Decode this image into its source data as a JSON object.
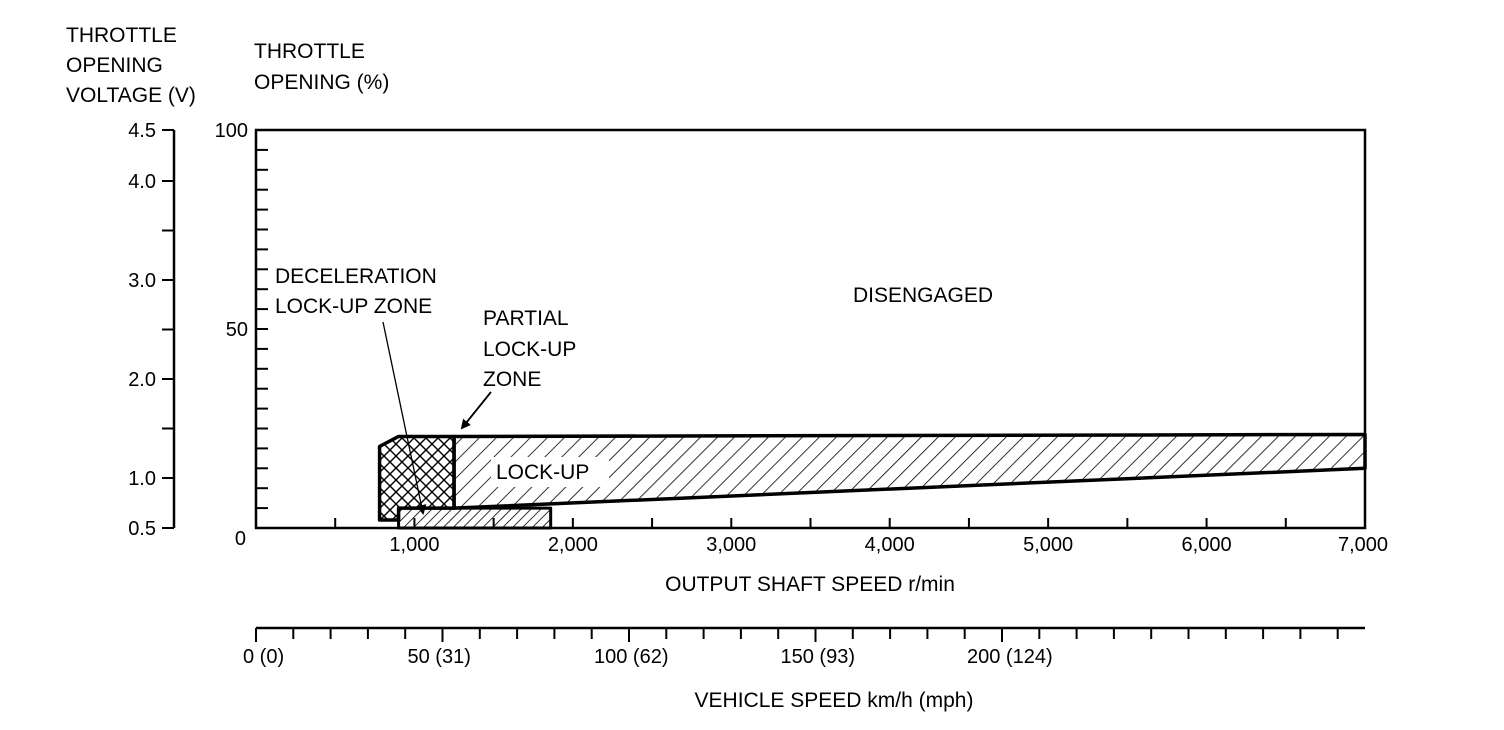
{
  "chart_data": {
    "type": "area",
    "left_axis_title": [
      "THROTTLE",
      "OPENING",
      "VOLTAGE (V)"
    ],
    "inner_axis_title": [
      "THROTTLE",
      "OPENING (%)"
    ],
    "voltage_ticks": [
      "4.5",
      "4.0",
      "3.0",
      "2.0",
      "1.0",
      "0.5"
    ],
    "voltage_values": [
      4.5,
      4.0,
      3.0,
      2.0,
      1.0,
      0.5
    ],
    "throttle_ticks": [
      "100",
      "50",
      "0"
    ],
    "throttle_values": [
      100,
      50,
      0
    ],
    "xlabel": "OUTPUT SHAFT SPEED r/min",
    "x_ticks": [
      "1,000",
      "2,000",
      "3,000",
      "4,000",
      "5,000",
      "6,000",
      "7,000"
    ],
    "x_values": [
      1000,
      2000,
      3000,
      4000,
      5000,
      6000,
      7000
    ],
    "xlim": [
      0,
      7000
    ],
    "ylim": [
      0,
      100
    ],
    "vehicle_speed_label": "VEHICLE SPEED km/h (mph)",
    "vehicle_speed_ticks": [
      "0 (0)",
      "50 (31)",
      "100 (62)",
      "150 (93)",
      "200 (124)"
    ],
    "vehicle_speed_values": [
      0,
      50,
      100,
      150,
      200
    ],
    "zones": [
      {
        "name": "DISENGAGED",
        "label": "DISENGAGED"
      },
      {
        "name": "DECELERATION LOCK-UP ZONE",
        "label": [
          "DECELERATION",
          "LOCK-UP ZONE"
        ],
        "points": [
          [
            780,
            2
          ],
          [
            780,
            20.5
          ],
          [
            900,
            23
          ],
          [
            1250,
            23
          ],
          [
            1250,
            5
          ],
          [
            900,
            5
          ],
          [
            900,
            2
          ]
        ]
      },
      {
        "name": "PARTIAL LOCK-UP ZONE",
        "label": [
          "PARTIAL",
          "LOCK-UP",
          "ZONE"
        ],
        "points": [
          [
            900,
            0
          ],
          [
            900,
            5
          ],
          [
            1860,
            5
          ],
          [
            1860,
            0
          ]
        ]
      },
      {
        "name": "LOCK-UP",
        "label": "LOCK-UP",
        "points": [
          [
            1250,
            23
          ],
          [
            7000,
            23.5
          ],
          [
            7000,
            15
          ],
          [
            1250,
            5
          ]
        ]
      }
    ]
  }
}
